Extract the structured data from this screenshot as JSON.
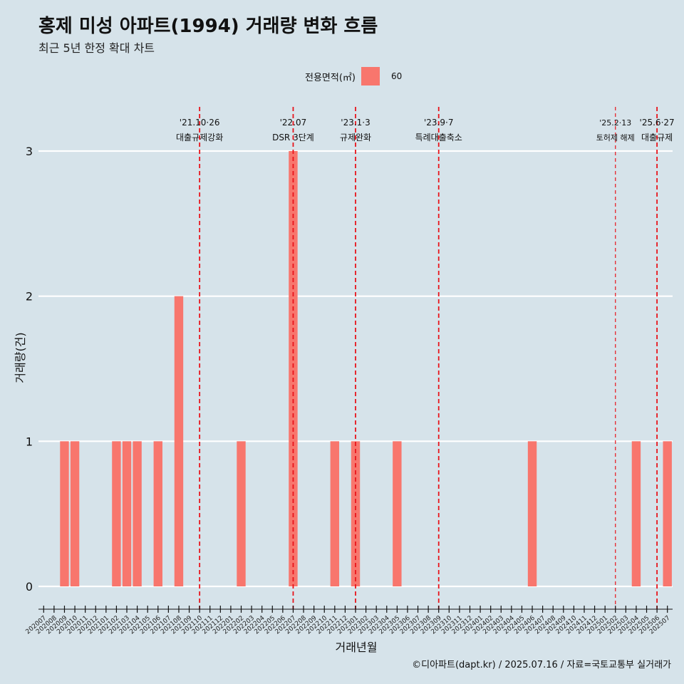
{
  "title": "홍제 미성 아파트(1994) 거래량 변화 흐름",
  "subtitle": "최근 5년 한정 확대 차트",
  "caption": "©디아파트(dapt.kr) / 2025.07.16 / 자료=국토교통부 실거래가",
  "legend": {
    "title": "전용면적(㎡)",
    "items": [
      {
        "label": "60",
        "color": "#f8766d"
      }
    ]
  },
  "chart_data": {
    "type": "bar",
    "xlabel": "거래년월",
    "ylabel": "거래량(건)",
    "ylim": [
      0,
      3
    ],
    "yticks": [
      0,
      1,
      2,
      3
    ],
    "grid": true,
    "bar_color": "#f8766d",
    "categories": [
      "202007",
      "202008",
      "202009",
      "202010",
      "202011",
      "202012",
      "202101",
      "202102",
      "202103",
      "202104",
      "202105",
      "202106",
      "202107",
      "202108",
      "202109",
      "202110",
      "202111",
      "202112",
      "202201",
      "202202",
      "202203",
      "202204",
      "202205",
      "202206",
      "202207",
      "202208",
      "202209",
      "202210",
      "202211",
      "202212",
      "202301",
      "202302",
      "202303",
      "202304",
      "202305",
      "202306",
      "202307",
      "202308",
      "202309",
      "202310",
      "202311",
      "202312",
      "202401",
      "202402",
      "202403",
      "202404",
      "202405",
      "202406",
      "202407",
      "202408",
      "202409",
      "202410",
      "202411",
      "202412",
      "202501",
      "202502",
      "202503",
      "202504",
      "202505",
      "202506",
      "202507"
    ],
    "values": [
      0,
      0,
      1,
      1,
      0,
      0,
      0,
      1,
      1,
      1,
      0,
      1,
      0,
      2,
      0,
      0,
      0,
      0,
      0,
      1,
      0,
      0,
      0,
      0,
      3,
      0,
      0,
      0,
      1,
      0,
      1,
      0,
      0,
      0,
      1,
      0,
      0,
      0,
      0,
      0,
      0,
      0,
      0,
      0,
      0,
      0,
      0,
      1,
      0,
      0,
      0,
      0,
      0,
      0,
      0,
      0,
      0,
      1,
      0,
      0,
      1
    ],
    "annotations": [
      {
        "date": "'21.10·26",
        "label": "대출규제강화",
        "x": "202110",
        "style": "dashed"
      },
      {
        "date": "'22.07",
        "label": "DSR 3단계",
        "x": "202207",
        "style": "dashed"
      },
      {
        "date": "'23.1·3",
        "label": "규제완화",
        "x": "202301",
        "style": "dashed"
      },
      {
        "date": "'23.9·7",
        "label": "특례대출축소",
        "x": "202309",
        "style": "dashed"
      },
      {
        "date": "'25.2·13",
        "label": "토허제 해제",
        "x": "202502",
        "style": "thin-dashed"
      },
      {
        "date": "'25.6·27",
        "label": "대출규제",
        "x": "202506",
        "style": "dashed"
      }
    ]
  }
}
